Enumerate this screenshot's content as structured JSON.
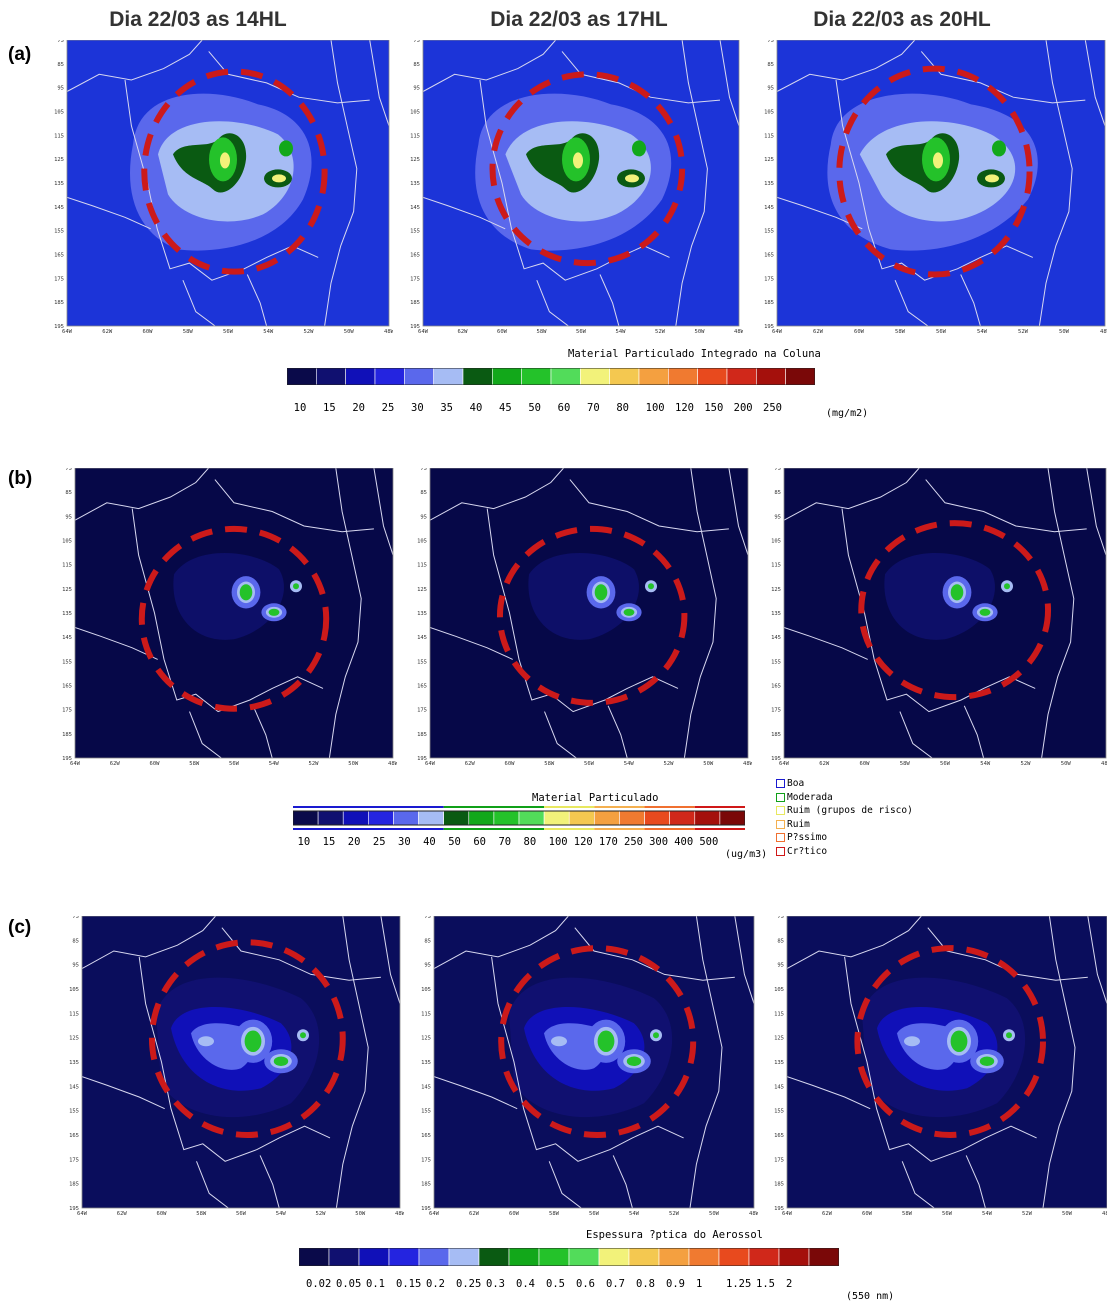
{
  "titles": [
    "Dia 22/03 as 14HL",
    "Dia 22/03 as 17HL",
    "Dia 22/03 as 20HL"
  ],
  "rows": [
    {
      "label": "(a)"
    },
    {
      "label": "(b)"
    },
    {
      "label": "(c)"
    }
  ],
  "axes": {
    "y_ticks": [
      "75",
      "85",
      "95",
      "105",
      "115",
      "125",
      "135",
      "145",
      "155",
      "165",
      "175",
      "185",
      "195"
    ],
    "x_ticks": [
      "64W",
      "62W",
      "60W",
      "58W",
      "56W",
      "54W",
      "52W",
      "50W",
      "48W"
    ]
  },
  "colorbars": [
    {
      "title": "Material Particulado Integrado na Coluna",
      "colors": [
        "#0a0a4a",
        "#101070",
        "#1010b8",
        "#2424e0",
        "#5a68ec",
        "#a6bcf4",
        "#0a5a12",
        "#12a81a",
        "#24c22a",
        "#52dc5a",
        "#f2f27a",
        "#f4c850",
        "#f4a040",
        "#f07a30",
        "#e84a1e",
        "#d0281a",
        "#a4100c",
        "#7a0808"
      ],
      "labels": [
        "10",
        "15",
        "20",
        "25",
        "30",
        "35",
        "40",
        "45",
        "50",
        "60",
        "70",
        "80",
        "100",
        "120",
        "150",
        "200",
        "250"
      ],
      "unit": "(mg/m2)"
    },
    {
      "title": "Material Particulado",
      "colors": [
        "#0a0a4a",
        "#101070",
        "#1010b8",
        "#2424e0",
        "#5a68ec",
        "#a6bcf4",
        "#0a5a12",
        "#12a81a",
        "#24c22a",
        "#52dc5a",
        "#f2f27a",
        "#f4c850",
        "#f4a040",
        "#f07a30",
        "#e84a1e",
        "#d0281a",
        "#a4100c",
        "#7a0808"
      ],
      "labels": [
        "10",
        "15",
        "20",
        "25",
        "30",
        "40",
        "50",
        "60",
        "70",
        "80",
        "100",
        "120",
        "170",
        "250",
        "300",
        "400",
        "500"
      ],
      "unit": "(ug/m3)",
      "legend": [
        {
          "label": "Boa",
          "color": "#1a1ad0"
        },
        {
          "label": "Moderada",
          "color": "#10a018"
        },
        {
          "label": "Ruim (grupos de risco)",
          "color": "#e8e860"
        },
        {
          "label": "Ruim",
          "color": "#f4b050"
        },
        {
          "label": "P?ssimo",
          "color": "#f07030"
        },
        {
          "label": "Cr?tico",
          "color": "#d01818"
        }
      ]
    },
    {
      "title": "Espessura ?ptica do Aerossol",
      "colors": [
        "#0a0a4a",
        "#101070",
        "#1010b8",
        "#2424e0",
        "#5a68ec",
        "#a6bcf4",
        "#0a5a12",
        "#12a81a",
        "#24c22a",
        "#52dc5a",
        "#f2f27a",
        "#f4c850",
        "#f4a040",
        "#f07a30",
        "#e84a1e",
        "#d0281a",
        "#a4100c",
        "#7a0808"
      ],
      "labels": [
        "0.02",
        "0.05",
        "0.1",
        "0.15",
        "0.2",
        "0.25",
        "0.3",
        "0.4",
        "0.5",
        "0.6",
        "0.7",
        "0.8",
        "0.9",
        "1",
        "1.25",
        "1.5",
        "2"
      ],
      "unit": "(550 nm)"
    }
  ],
  "colors": {
    "background_a": "#1c34d8",
    "background_b": "#060848",
    "background_c": "#0a0d5c",
    "border": "#d8d8f0",
    "circle": "#cc1a1a"
  }
}
